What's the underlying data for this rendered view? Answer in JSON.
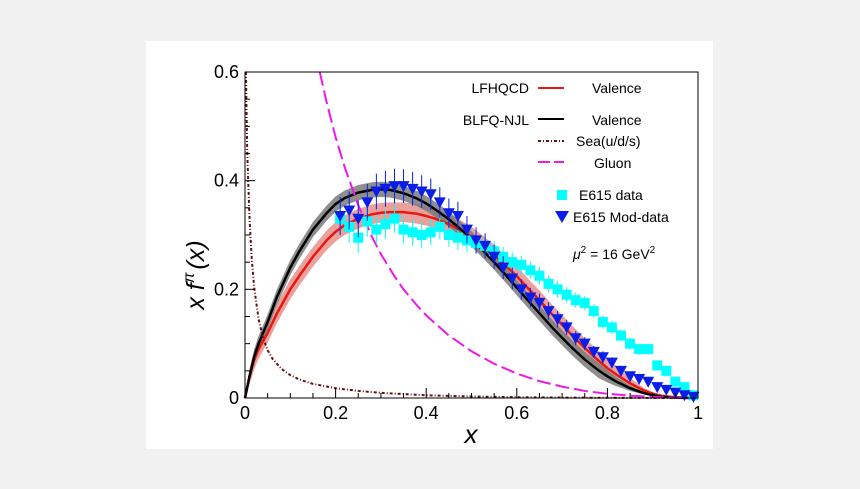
{
  "chart_data": {
    "type": "line",
    "xlabel": "x",
    "ylabel": "x f",
    "ylabel_superscript": "π",
    "ylabel_argument": "(x)",
    "xlim": [
      0,
      1
    ],
    "ylim": [
      0,
      0.6
    ],
    "x_ticks": [
      0,
      0.2,
      0.4,
      0.6,
      0.8,
      1
    ],
    "x_tick_labels": [
      "0",
      "0.2",
      "0.4",
      "0.6",
      "0.8",
      "1"
    ],
    "y_ticks": [
      0,
      0.2,
      0.4,
      0.6
    ],
    "y_tick_labels": [
      "0",
      "0.2",
      "0.4",
      "0.6"
    ],
    "annotation": {
      "mu": "μ",
      "exp": "2",
      "eq": " = 16 GeV",
      "exp2": "2"
    },
    "legend": {
      "group1": "LFHQCD",
      "group2": "BLFQ-NJL",
      "items": [
        "Valence",
        "Valence",
        "Sea(u/d/s)",
        "Gluon",
        "E615 data",
        "E615 Mod-data"
      ]
    },
    "colors": {
      "lfhqcd": "#e8170f",
      "lfhqcd_band": "#d9534f",
      "blfq": "#000000",
      "blfq_band": "#7a7a7a",
      "sea": "#6b0e0e",
      "gluon": "#f018e6",
      "e615": "#00ffff",
      "e615_mod": "#0a1ee8"
    },
    "series": [
      {
        "name": "LFHQCD Valence",
        "band": 0.018,
        "x": [
          0,
          0.01,
          0.02,
          0.03,
          0.05,
          0.07,
          0.1,
          0.12,
          0.15,
          0.18,
          0.2,
          0.22,
          0.25,
          0.28,
          0.3,
          0.32,
          0.35,
          0.38,
          0.4,
          0.42,
          0.45,
          0.48,
          0.5,
          0.52,
          0.55,
          0.58,
          0.6,
          0.62,
          0.65,
          0.68,
          0.7,
          0.72,
          0.75,
          0.78,
          0.8,
          0.82,
          0.85,
          0.88,
          0.9,
          0.92,
          0.95,
          0.97,
          1.0
        ],
        "y": [
          0,
          0.04,
          0.07,
          0.09,
          0.12,
          0.155,
          0.2,
          0.225,
          0.26,
          0.29,
          0.306,
          0.318,
          0.33,
          0.338,
          0.341,
          0.342,
          0.342,
          0.339,
          0.335,
          0.33,
          0.32,
          0.307,
          0.297,
          0.284,
          0.264,
          0.24,
          0.224,
          0.206,
          0.18,
          0.152,
          0.135,
          0.117,
          0.092,
          0.069,
          0.055,
          0.043,
          0.027,
          0.014,
          0.008,
          0.004,
          0.0015,
          0.0005,
          0
        ]
      },
      {
        "name": "BLFQ-NJL Valence",
        "band": 0.014,
        "x": [
          0,
          0.01,
          0.02,
          0.03,
          0.05,
          0.07,
          0.1,
          0.12,
          0.15,
          0.18,
          0.2,
          0.22,
          0.25,
          0.28,
          0.3,
          0.32,
          0.35,
          0.38,
          0.4,
          0.42,
          0.45,
          0.48,
          0.5,
          0.52,
          0.55,
          0.58,
          0.6,
          0.62,
          0.65,
          0.68,
          0.7,
          0.72,
          0.75,
          0.78,
          0.8,
          0.82,
          0.85,
          0.88,
          0.9,
          0.92,
          0.95,
          0.97,
          1.0
        ],
        "y": [
          0,
          0.04,
          0.075,
          0.1,
          0.14,
          0.185,
          0.24,
          0.27,
          0.31,
          0.34,
          0.357,
          0.368,
          0.378,
          0.383,
          0.384,
          0.383,
          0.377,
          0.367,
          0.358,
          0.347,
          0.329,
          0.308,
          0.293,
          0.276,
          0.25,
          0.222,
          0.203,
          0.184,
          0.156,
          0.128,
          0.111,
          0.094,
          0.071,
          0.051,
          0.04,
          0.03,
          0.018,
          0.009,
          0.005,
          0.002,
          0.0007,
          0.0002,
          0
        ]
      },
      {
        "name": "Sea(u/d/s)",
        "x": [
          0.002,
          0.005,
          0.01,
          0.015,
          0.02,
          0.03,
          0.04,
          0.05,
          0.06,
          0.08,
          0.1,
          0.12,
          0.15,
          0.2,
          0.25,
          0.3,
          0.4,
          0.5,
          0.6,
          0.7,
          0.8,
          0.9,
          1.0
        ],
        "y": [
          0.6,
          0.45,
          0.33,
          0.255,
          0.205,
          0.145,
          0.11,
          0.088,
          0.073,
          0.054,
          0.042,
          0.034,
          0.026,
          0.018,
          0.013,
          0.0095,
          0.005,
          0.0028,
          0.0015,
          0.0008,
          0.0004,
          0.0001,
          0
        ]
      },
      {
        "name": "Gluon",
        "x": [
          0.165,
          0.18,
          0.2,
          0.22,
          0.25,
          0.28,
          0.3,
          0.33,
          0.35,
          0.38,
          0.4,
          0.45,
          0.5,
          0.55,
          0.6,
          0.65,
          0.7,
          0.75,
          0.8,
          0.85,
          0.9,
          0.95,
          1.0
        ],
        "y": [
          0.6,
          0.545,
          0.48,
          0.425,
          0.355,
          0.297,
          0.265,
          0.224,
          0.2,
          0.17,
          0.152,
          0.115,
          0.086,
          0.063,
          0.045,
          0.031,
          0.021,
          0.013,
          0.0078,
          0.0043,
          0.002,
          0.0007,
          0
        ]
      },
      {
        "name": "E615 data",
        "x": [
          0.21,
          0.23,
          0.25,
          0.27,
          0.29,
          0.31,
          0.33,
          0.35,
          0.37,
          0.39,
          0.41,
          0.43,
          0.45,
          0.47,
          0.49,
          0.51,
          0.53,
          0.55,
          0.57,
          0.59,
          0.61,
          0.63,
          0.65,
          0.67,
          0.69,
          0.71,
          0.73,
          0.75,
          0.77,
          0.79,
          0.81,
          0.83,
          0.85,
          0.87,
          0.89,
          0.91,
          0.93,
          0.95,
          0.97,
          0.99
        ],
        "y": [
          0.33,
          0.315,
          0.295,
          0.325,
          0.31,
          0.32,
          0.33,
          0.31,
          0.305,
          0.3,
          0.305,
          0.315,
          0.3,
          0.295,
          0.29,
          0.285,
          0.28,
          0.27,
          0.26,
          0.25,
          0.245,
          0.235,
          0.225,
          0.21,
          0.2,
          0.19,
          0.18,
          0.175,
          0.16,
          0.14,
          0.13,
          0.115,
          0.1,
          0.09,
          0.09,
          0.06,
          0.05,
          0.03,
          0.02,
          0.005
        ],
        "err": [
          0.03,
          0.03,
          0.028,
          0.028,
          0.027,
          0.027,
          0.026,
          0.025,
          0.025,
          0.024,
          0.024,
          0.023,
          0.022,
          0.022,
          0.021,
          0.02,
          0.02,
          0.019,
          0.018,
          0.018,
          0.017,
          0.016,
          0.016,
          0.015,
          0.015,
          0.014,
          0.014,
          0.013,
          0.013,
          0.012,
          0.012,
          0.011,
          0.011,
          0.01,
          0.01,
          0.009,
          0.009,
          0.008,
          0.007,
          0.006
        ]
      },
      {
        "name": "E615 Mod-data",
        "x": [
          0.21,
          0.23,
          0.25,
          0.27,
          0.29,
          0.31,
          0.33,
          0.35,
          0.37,
          0.39,
          0.41,
          0.43,
          0.45,
          0.47,
          0.49,
          0.51,
          0.53,
          0.55,
          0.57,
          0.59,
          0.61,
          0.63,
          0.65,
          0.67,
          0.69,
          0.71,
          0.73,
          0.75,
          0.77,
          0.79,
          0.81,
          0.83,
          0.85,
          0.87,
          0.89,
          0.91,
          0.93,
          0.95,
          0.97,
          0.99
        ],
        "y": [
          0.335,
          0.345,
          0.33,
          0.36,
          0.38,
          0.385,
          0.39,
          0.39,
          0.385,
          0.38,
          0.375,
          0.36,
          0.34,
          0.335,
          0.31,
          0.29,
          0.28,
          0.26,
          0.24,
          0.22,
          0.2,
          0.185,
          0.175,
          0.16,
          0.145,
          0.13,
          0.11,
          0.1,
          0.085,
          0.075,
          0.065,
          0.05,
          0.04,
          0.035,
          0.03,
          0.02,
          0.015,
          0.01,
          0.005,
          0.002
        ],
        "err": [
          0.035,
          0.035,
          0.034,
          0.034,
          0.033,
          0.033,
          0.032,
          0.031,
          0.031,
          0.03,
          0.029,
          0.028,
          0.027,
          0.026,
          0.025,
          0.024,
          0.023,
          0.022,
          0.021,
          0.02,
          0.019,
          0.018,
          0.017,
          0.016,
          0.015,
          0.014,
          0.013,
          0.012,
          0.011,
          0.011,
          0.01,
          0.009,
          0.009,
          0.008,
          0.007,
          0.007,
          0.006,
          0.005,
          0.004,
          0.004
        ]
      }
    ]
  }
}
